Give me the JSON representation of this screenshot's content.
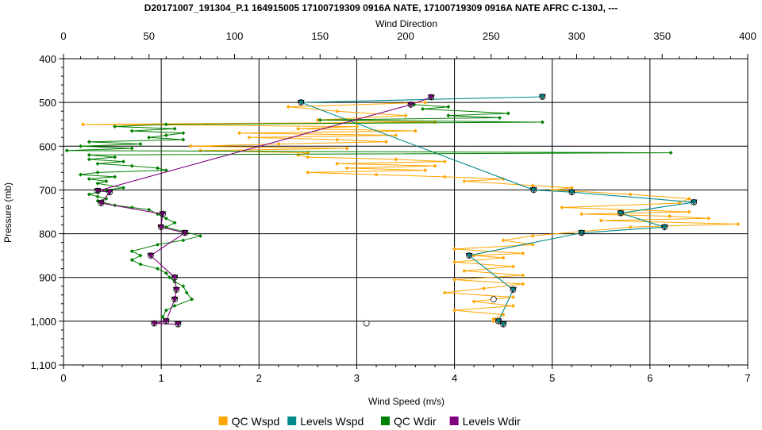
{
  "chart_data": {
    "type": "scatter",
    "title": "D20171007_191304_P.1 164915005 17100719309 0916A NATE, 17100719309 0916A NATE AFRC C-130J, ---",
    "top_axis": {
      "label": "Wind Direction",
      "range": [
        0,
        400
      ],
      "ticks": [
        0,
        50,
        100,
        150,
        200,
        250,
        300,
        350,
        400
      ]
    },
    "bottom_axis": {
      "label": "Wind Speed (m/s)",
      "range": [
        0,
        7
      ],
      "ticks": [
        0,
        1,
        2,
        3,
        4,
        5,
        6,
        7
      ]
    },
    "left_axis": {
      "label": "Pressure (mb)",
      "range": [
        400,
        1100
      ],
      "inverted": true,
      "ticks": [
        400,
        500,
        600,
        700,
        800,
        900,
        1000,
        1100
      ],
      "tick_labels": [
        "400",
        "500",
        "600",
        "700",
        "800",
        "900",
        "1,000",
        "1,100"
      ]
    },
    "grid": true,
    "legend_position": "bottom",
    "legend": [
      {
        "label": "QC Wspd",
        "color": "#ffa500"
      },
      {
        "label": "Levels Wspd",
        "color": "#008b8b"
      },
      {
        "label": "QC Wdir",
        "color": "#008000"
      },
      {
        "label": "Levels Wdir",
        "color": "#800080"
      }
    ],
    "series": [
      {
        "name": "QC Wspd",
        "axis": "speed",
        "color": "#ffa500",
        "points": [
          [
            3.7,
            500
          ],
          [
            2.3,
            510
          ],
          [
            2.8,
            520
          ],
          [
            3.5,
            530
          ],
          [
            2.6,
            540
          ],
          [
            3.8,
            545
          ],
          [
            0.2,
            550
          ],
          [
            3.0,
            555
          ],
          [
            2.4,
            560
          ],
          [
            3.6,
            565
          ],
          [
            1.8,
            570
          ],
          [
            3.4,
            575
          ],
          [
            1.9,
            580
          ],
          [
            2.8,
            585
          ],
          [
            3.3,
            590
          ],
          [
            2.2,
            595
          ],
          [
            1.3,
            600
          ],
          [
            2.9,
            605
          ],
          [
            1.4,
            610
          ],
          [
            2.5,
            615
          ],
          [
            2.4,
            620
          ],
          [
            2.5,
            625
          ],
          [
            3.4,
            630
          ],
          [
            3.9,
            635
          ],
          [
            2.8,
            640
          ],
          [
            3.8,
            645
          ],
          [
            2.9,
            650
          ],
          [
            3.7,
            655
          ],
          [
            2.5,
            660
          ],
          [
            3.2,
            665
          ],
          [
            3.9,
            670
          ],
          [
            4.5,
            675
          ],
          [
            4.1,
            680
          ],
          [
            4.8,
            690
          ],
          [
            5.2,
            695
          ],
          [
            5.0,
            700
          ],
          [
            5.8,
            710
          ],
          [
            6.4,
            720
          ],
          [
            6.3,
            730
          ],
          [
            5.1,
            740
          ],
          [
            6.4,
            750
          ],
          [
            5.3,
            755
          ],
          [
            6.2,
            760
          ],
          [
            6.6,
            765
          ],
          [
            5.5,
            770
          ],
          [
            6.9,
            778
          ],
          [
            5.8,
            785
          ],
          [
            5.3,
            795
          ],
          [
            4.8,
            805
          ],
          [
            4.5,
            815
          ],
          [
            4.8,
            825
          ],
          [
            4.0,
            835
          ],
          [
            4.7,
            845
          ],
          [
            4.2,
            850
          ],
          [
            4.5,
            855
          ],
          [
            4.0,
            865
          ],
          [
            4.6,
            875
          ],
          [
            4.1,
            885
          ],
          [
            4.7,
            895
          ],
          [
            4.0,
            905
          ],
          [
            4.7,
            915
          ],
          [
            4.3,
            925
          ],
          [
            3.9,
            935
          ],
          [
            4.6,
            945
          ],
          [
            4.2,
            955
          ],
          [
            4.6,
            965
          ],
          [
            4.0,
            975
          ],
          [
            4.5,
            985
          ],
          [
            4.4,
            995
          ],
          [
            4.4,
            1000
          ]
        ]
      },
      {
        "name": "Levels Wspd",
        "axis": "speed",
        "color": "#008b8b",
        "points": [
          [
            4.9,
            487
          ],
          [
            2.43,
            500
          ],
          [
            4.81,
            700
          ],
          [
            5.2,
            705
          ],
          [
            6.45,
            728
          ],
          [
            5.7,
            753
          ],
          [
            6.15,
            785
          ],
          [
            5.3,
            798
          ],
          [
            4.15,
            850
          ],
          [
            4.6,
            928
          ],
          [
            4.45,
            1000
          ],
          [
            4.5,
            1007
          ]
        ]
      },
      {
        "name": "QC Wdir",
        "axis": "direction",
        "color": "#008000",
        "points": [
          [
            205,
            505
          ],
          [
            225,
            510
          ],
          [
            210,
            515
          ],
          [
            260,
            525
          ],
          [
            225,
            530
          ],
          [
            255,
            535
          ],
          [
            150,
            540
          ],
          [
            280,
            545
          ],
          [
            60,
            550
          ],
          [
            30,
            555
          ],
          [
            65,
            560
          ],
          [
            40,
            565
          ],
          [
            70,
            570
          ],
          [
            60,
            575
          ],
          [
            50,
            580
          ],
          [
            70,
            585
          ],
          [
            15,
            590
          ],
          [
            45,
            595
          ],
          [
            10,
            600
          ],
          [
            40,
            605
          ],
          [
            2,
            610
          ],
          [
            355,
            615
          ],
          [
            15,
            620
          ],
          [
            30,
            625
          ],
          [
            15,
            630
          ],
          [
            35,
            635
          ],
          [
            20,
            640
          ],
          [
            40,
            645
          ],
          [
            55,
            650
          ],
          [
            60,
            655
          ],
          [
            20,
            660
          ],
          [
            10,
            665
          ],
          [
            30,
            670
          ],
          [
            15,
            675
          ],
          [
            25,
            680
          ],
          [
            20,
            685
          ],
          [
            35,
            695
          ],
          [
            25,
            700
          ],
          [
            20,
            705
          ],
          [
            15,
            710
          ],
          [
            20,
            715
          ],
          [
            25,
            720
          ],
          [
            20,
            725
          ],
          [
            30,
            735
          ],
          [
            40,
            740
          ],
          [
            50,
            745
          ],
          [
            55,
            755
          ],
          [
            60,
            765
          ],
          [
            65,
            775
          ],
          [
            60,
            785
          ],
          [
            70,
            795
          ],
          [
            80,
            805
          ],
          [
            70,
            815
          ],
          [
            55,
            825
          ],
          [
            40,
            840
          ],
          [
            45,
            850
          ],
          [
            40,
            860
          ],
          [
            45,
            870
          ],
          [
            55,
            880
          ],
          [
            60,
            890
          ],
          [
            62,
            900
          ],
          [
            65,
            910
          ],
          [
            70,
            920
          ],
          [
            72,
            935
          ],
          [
            75,
            950
          ],
          [
            65,
            965
          ],
          [
            60,
            975
          ],
          [
            58,
            990
          ],
          [
            60,
            1000
          ]
        ]
      },
      {
        "name": "Levels Wdir",
        "axis": "direction",
        "color": "#800080",
        "points": [
          [
            215,
            488
          ],
          [
            203,
            505
          ],
          [
            20,
            702
          ],
          [
            27,
            705
          ],
          [
            22,
            730
          ],
          [
            58,
            755
          ],
          [
            57,
            785
          ],
          [
            71,
            798
          ],
          [
            51,
            850
          ],
          [
            65,
            900
          ],
          [
            66,
            928
          ],
          [
            65,
            950
          ],
          [
            60,
            1000
          ],
          [
            53,
            1005
          ],
          [
            67,
            1007
          ]
        ]
      },
      {
        "name": "",
        "axis": "speed",
        "color": "#000000",
        "points": [
          [
            3.1,
            1005
          ],
          [
            4.4,
            950
          ]
        ]
      }
    ]
  }
}
